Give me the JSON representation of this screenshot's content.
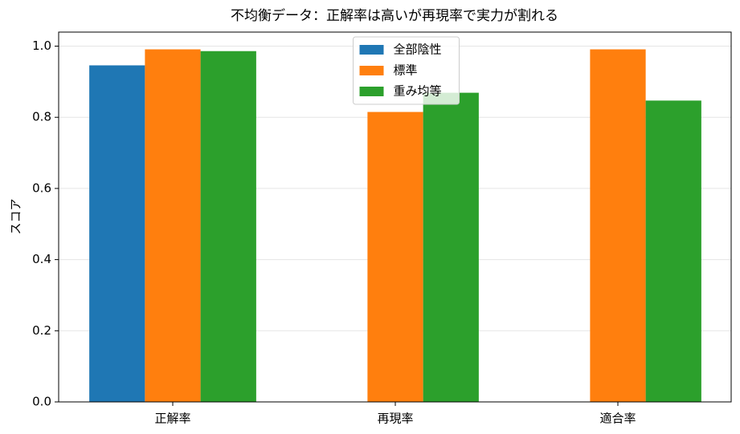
{
  "chart_data": {
    "type": "bar",
    "title": "不均衡データ：正解率は高いが再現率で実力が割れる",
    "ylabel": "スコア",
    "categories": [
      "正解率",
      "再現率",
      "適合率"
    ],
    "series": [
      {
        "name": "全部陰性",
        "color": "#1f77b4",
        "values": [
          0.946,
          0,
          0
        ]
      },
      {
        "name": "標準",
        "color": "#ff7f0e",
        "values": [
          0.991,
          0.815,
          0.991
        ]
      },
      {
        "name": "重み均等",
        "color": "#2ca02c",
        "values": [
          0.986,
          0.869,
          0.847
        ]
      }
    ],
    "ylim": [
      0,
      1.0395
    ],
    "yticks": [
      {
        "value": 0,
        "label": "0.0"
      },
      0.2,
      0.4,
      0.6,
      0.8,
      {
        "value": 1,
        "label": "1.0"
      }
    ],
    "grid": true,
    "legend": "upper center"
  }
}
